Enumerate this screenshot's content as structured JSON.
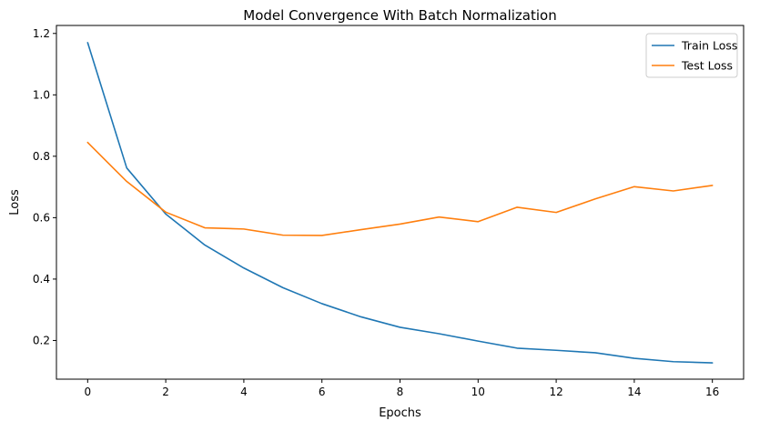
{
  "chart_data": {
    "type": "line",
    "title": "Model Convergence With Batch Normalization",
    "xlabel": "Epochs",
    "ylabel": "Loss",
    "x": [
      0,
      1,
      2,
      3,
      4,
      5,
      6,
      7,
      8,
      9,
      10,
      11,
      12,
      13,
      14,
      15,
      16
    ],
    "xlim": [
      -0.8,
      16.8
    ],
    "ylim": [
      0.074,
      1.226
    ],
    "xticks": [
      0,
      2,
      4,
      6,
      8,
      10,
      12,
      14,
      16
    ],
    "yticks": [
      0.2,
      0.4,
      0.6,
      0.8,
      1.0,
      1.2
    ],
    "ytick_labels": [
      "0.2",
      "0.4",
      "0.6",
      "0.8",
      "1.0",
      "1.2"
    ],
    "grid": false,
    "legend_position": "top-right",
    "series": [
      {
        "name": "Train Loss",
        "color": "#1f77b4",
        "values": [
          1.17,
          0.762,
          0.612,
          0.511,
          0.436,
          0.372,
          0.32,
          0.277,
          0.243,
          0.222,
          0.198,
          0.175,
          0.168,
          0.16,
          0.142,
          0.131,
          0.127
        ]
      },
      {
        "name": "Test Loss",
        "color": "#ff7f0e",
        "values": [
          0.845,
          0.718,
          0.618,
          0.567,
          0.563,
          0.543,
          0.542,
          0.561,
          0.579,
          0.602,
          0.587,
          0.634,
          0.617,
          0.661,
          0.701,
          0.687,
          0.705
        ]
      }
    ]
  }
}
